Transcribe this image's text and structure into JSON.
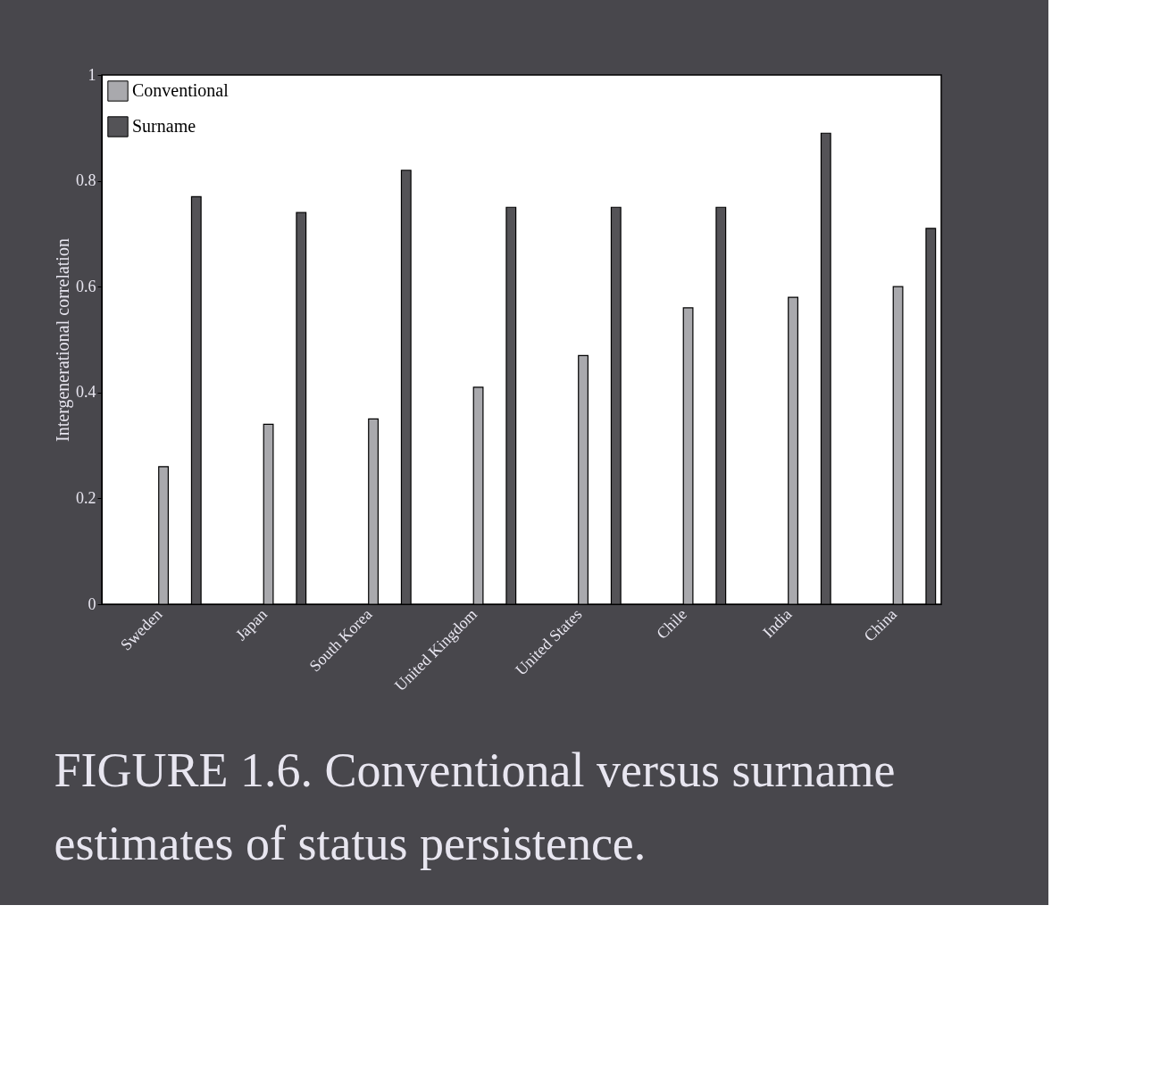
{
  "chart_data": {
    "type": "bar",
    "ylabel": "Intergenerational correlation",
    "categories": [
      "Sweden",
      "Japan",
      "South Korea",
      "United Kingdom",
      "United States",
      "Chile",
      "India",
      "China"
    ],
    "series": [
      {
        "name": "Conventional",
        "color": "#a9a9ad",
        "values": [
          0.26,
          0.34,
          0.35,
          0.41,
          0.47,
          0.56,
          0.58,
          0.6
        ]
      },
      {
        "name": "Surname",
        "color": "#545357",
        "values": [
          0.77,
          0.74,
          0.82,
          0.75,
          0.75,
          0.75,
          0.89,
          0.71
        ]
      }
    ],
    "ylim": [
      0,
      1
    ],
    "yticks": [
      0,
      0.2,
      0.4,
      0.6,
      0.8,
      1
    ],
    "grid": false,
    "legend": "top left",
    "annotations": [
      "FIGURE 1.6. Conventional versus surname estimates of status persistence."
    ]
  }
}
